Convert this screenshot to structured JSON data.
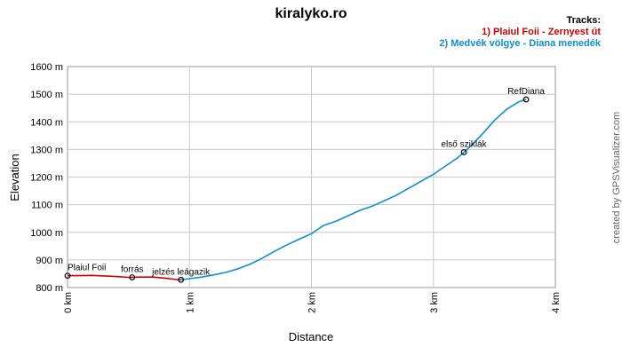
{
  "chart_data": {
    "type": "line",
    "title": "kiralyko.ro",
    "xlabel": "Distance",
    "ylabel": "Elevation",
    "xlim": [
      0,
      4
    ],
    "ylim": [
      800,
      1600
    ],
    "x_ticks": [
      0,
      1,
      2,
      3,
      4
    ],
    "x_tick_labels": [
      "0 km",
      "1 km",
      "2 km",
      "3 km",
      "4 km"
    ],
    "y_ticks": [
      800,
      900,
      1000,
      1100,
      1200,
      1300,
      1400,
      1500,
      1600
    ],
    "y_tick_labels": [
      "800 m",
      "900 m",
      "1000 m",
      "1100 m",
      "1200 m",
      "1300 m",
      "1400 m",
      "1500 m",
      "1600 m"
    ],
    "grid": true,
    "legend_title": "Tracks:",
    "legend_position": "top-right",
    "series": [
      {
        "name": "1)  Plaiul Foii - Zernyest út",
        "color": "#cc0000",
        "x": [
          0,
          0.1,
          0.2,
          0.3,
          0.4,
          0.5,
          0.6,
          0.7,
          0.8,
          0.9,
          0.93
        ],
        "y": [
          843,
          843,
          844,
          842,
          840,
          837,
          838,
          838,
          834,
          829,
          828
        ]
      },
      {
        "name": "2) Medvék völgye - Diana menedék",
        "color": "#0a8fd0",
        "x": [
          0.93,
          1.0,
          1.1,
          1.2,
          1.3,
          1.4,
          1.5,
          1.6,
          1.7,
          1.8,
          1.9,
          2.0,
          2.1,
          2.2,
          2.3,
          2.4,
          2.5,
          2.6,
          2.7,
          2.8,
          2.9,
          3.0,
          3.1,
          3.2,
          3.25,
          3.3,
          3.4,
          3.5,
          3.6,
          3.7,
          3.76
        ],
        "y": [
          828,
          832,
          838,
          846,
          855,
          868,
          885,
          907,
          932,
          955,
          975,
          995,
          1025,
          1040,
          1060,
          1080,
          1095,
          1115,
          1135,
          1160,
          1185,
          1210,
          1240,
          1270,
          1290,
          1310,
          1355,
          1405,
          1445,
          1472,
          1481
        ]
      }
    ],
    "waypoints": [
      {
        "label": "Plaiul Foii",
        "x": 0.0,
        "y": 843
      },
      {
        "label": "forrás",
        "x": 0.53,
        "y": 837
      },
      {
        "label": "jelzés leágazik",
        "x": 0.93,
        "y": 828
      },
      {
        "label": "első sziklák",
        "x": 3.25,
        "y": 1290
      },
      {
        "label": "RefDiana",
        "x": 3.76,
        "y": 1481
      }
    ]
  },
  "credit": "created by GPSVisualizer.com"
}
